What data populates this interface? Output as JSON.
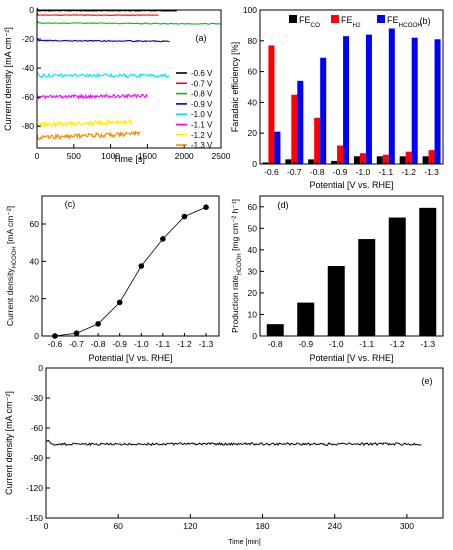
{
  "chart_data": [
    {
      "panel": "(a)",
      "type": "line",
      "xlabel": "Time [s]",
      "ylabel": "Current density [mA cm⁻²]",
      "xlim": [
        0,
        2500
      ],
      "ylim": [
        -95,
        0
      ],
      "xticks": [
        0,
        500,
        1000,
        1500,
        2000,
        2500
      ],
      "yticks": [
        0,
        -20,
        -40,
        -60,
        -80
      ],
      "legend_position": "right",
      "series": [
        {
          "name": "-0.6 V",
          "color": "#000000",
          "x": [
            0,
            1900
          ],
          "y": [
            -0.5,
            -0.5
          ],
          "noise": 0.2
        },
        {
          "name": "-0.7 V",
          "color": "#ff0000",
          "x": [
            0,
            1650
          ],
          "y": [
            -3.5,
            -3.5
          ],
          "noise": 0.2
        },
        {
          "name": "-0.8 V",
          "color": "#00c000",
          "x": [
            0,
            2500
          ],
          "y": [
            -9,
            -9.5
          ],
          "noise": 0.3
        },
        {
          "name": "-0.9 V",
          "color": "#0000cc",
          "x": [
            0,
            1800
          ],
          "y": [
            -21,
            -21.5
          ],
          "noise": 0.4
        },
        {
          "name": "-1.0 V",
          "color": "#00e5ff",
          "x": [
            0,
            1800
          ],
          "y": [
            -45,
            -45
          ],
          "noise": 1.2
        },
        {
          "name": "-1.1 V",
          "color": "#ff00ff",
          "x": [
            0,
            1500
          ],
          "y": [
            -60,
            -59
          ],
          "noise": 1.2
        },
        {
          "name": "-1.2 V",
          "color": "#ffee00",
          "x": [
            0,
            1300
          ],
          "y": [
            -79,
            -77
          ],
          "noise": 1.6
        },
        {
          "name": "-1.3 V",
          "color": "#ff8800",
          "x": [
            0,
            1400
          ],
          "y": [
            -88,
            -85
          ],
          "noise": 1.6
        }
      ]
    },
    {
      "panel": "(b)",
      "type": "bar",
      "xlabel": "Potential [V vs. RHE]",
      "ylabel": "Faradaic efficiency [%]",
      "ylim": [
        0,
        100
      ],
      "yticks": [
        0,
        20,
        40,
        60,
        80,
        100
      ],
      "categories": [
        "-0.6",
        "-0.7",
        "-0.8",
        "-0.9",
        "-1.0",
        "-1.1",
        "-1.2",
        "-1.3"
      ],
      "legend_position": "top",
      "series": [
        {
          "name": "FE",
          "sub": "CO",
          "color": "#000000",
          "values": [
            1,
            3,
            3,
            2,
            5,
            5,
            5,
            5
          ]
        },
        {
          "name": "FE",
          "sub": "H2",
          "color": "#ff0000",
          "values": [
            77,
            45,
            30,
            12,
            7,
            6,
            8,
            9
          ]
        },
        {
          "name": "FE",
          "sub": "HCOOH",
          "color": "#0000ff",
          "values": [
            21,
            54,
            69,
            83,
            84,
            88,
            82,
            81
          ]
        }
      ]
    },
    {
      "panel": "(c)",
      "type": "scatter",
      "xlabel": "Potential [V vs. RHE]",
      "ylabel": "Current density",
      "ylabel_sub": "HCOOH",
      "ylabel_tail": " [mA cm⁻²]",
      "ylim": [
        0,
        75
      ],
      "yticks": [
        0,
        20,
        40,
        60
      ],
      "categories": [
        "-0.6",
        "-0.7",
        "-0.8",
        "-0.9",
        "-1.0",
        "-1.1",
        "-1.2",
        "-1.3"
      ],
      "values": [
        0,
        1.5,
        6.5,
        18,
        37.5,
        52,
        64,
        69
      ]
    },
    {
      "panel": "(d)",
      "type": "bar",
      "xlabel": "Potential [V vs. RHE]",
      "ylabel": "Production rate",
      "ylabel_sub": "HCOOH",
      "ylabel_tail": " [mg cm⁻² h⁻¹]",
      "ylim": [
        0,
        65
      ],
      "yticks": [
        0,
        10,
        20,
        30,
        40,
        50,
        60
      ],
      "categories": [
        "-0.8",
        "-0.9",
        "-1.0",
        "-1.1",
        "-1.2",
        "-1.3"
      ],
      "values": [
        5.5,
        15.5,
        32.5,
        45,
        55,
        59.5
      ],
      "color": "#000000"
    },
    {
      "panel": "(e)",
      "type": "line",
      "xlabel": "Time [min]",
      "ylabel": "Current density [mA cm⁻²]",
      "xlim": [
        0,
        330
      ],
      "ylim": [
        -150,
        0
      ],
      "xticks": [
        0,
        60,
        120,
        180,
        240,
        300
      ],
      "yticks": [
        0,
        -30,
        -60,
        -90,
        -120,
        -150
      ],
      "series": [
        {
          "name": "",
          "color": "#000000",
          "x": [
            0,
            312
          ],
          "y": [
            -76,
            -76
          ],
          "noise": 1.2
        }
      ]
    }
  ]
}
